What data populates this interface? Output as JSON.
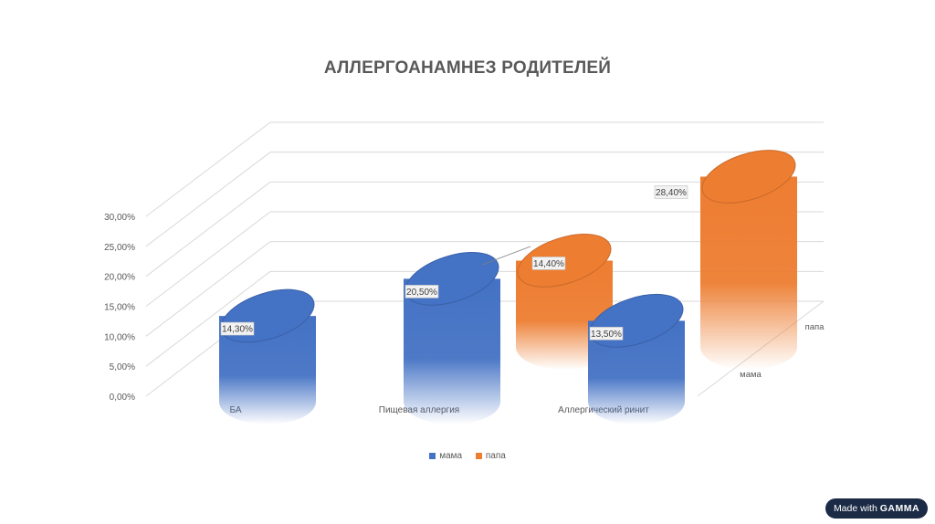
{
  "chart_data": {
    "type": "bar",
    "variant": "3d-cylinder",
    "title": "АЛЛЕРГОАНАМНЕЗ РОДИТЕЛЕЙ",
    "categories": [
      "БА",
      "Пищевая аллергия",
      "Аллергический ринит"
    ],
    "series": [
      {
        "name": "мама",
        "values": [
          14.3,
          20.5,
          13.5
        ],
        "labels": [
          "14,30%",
          "20,50%",
          "13,50%"
        ],
        "color": "#4472c4"
      },
      {
        "name": "папа",
        "values": [
          null,
          14.4,
          28.4
        ],
        "labels": [
          "",
          "14,40%",
          "28,40%"
        ],
        "color": "#ed7d31"
      }
    ],
    "depth_labels": [
      "мама",
      "папа"
    ],
    "y_ticks": [
      "0,00%",
      "5,00%",
      "10,00%",
      "15,00%",
      "20,00%",
      "25,00%",
      "30,00%"
    ],
    "ylim": [
      0,
      30
    ],
    "grid": true,
    "legend_position": "bottom"
  },
  "badge": {
    "prefix": "Made with",
    "brand": "GAMMA"
  }
}
